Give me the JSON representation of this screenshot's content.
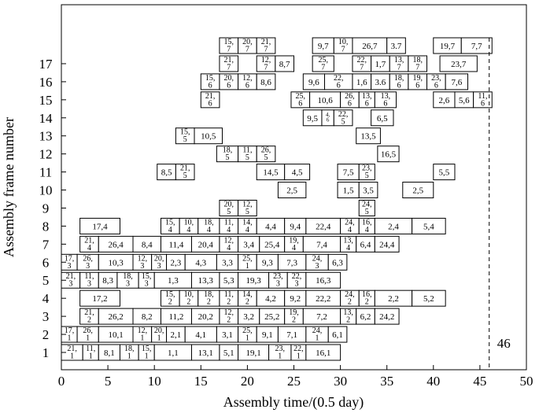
{
  "chart_data": {
    "type": "gantt",
    "title": "",
    "xlabel": "Assembly time/(0.5 day)",
    "ylabel": "Assembly frame number",
    "xlim": [
      0,
      50
    ],
    "ylim": [
      0.5,
      18.5
    ],
    "xticks": [
      "0",
      "5",
      "10",
      "15",
      "20",
      "25",
      "30",
      "35",
      "40",
      "45",
      "50"
    ],
    "yticks": [
      "1",
      "2",
      "3",
      "4",
      "5",
      "6",
      "7",
      "8",
      "9",
      "10",
      "11",
      "12",
      "13",
      "14",
      "15",
      "16",
      "17"
    ],
    "makespan_line": {
      "x": 46,
      "label": "46"
    },
    "tasks": [
      {
        "row": 1,
        "start": 0,
        "end": 2.3,
        "label": "21,\n1"
      },
      {
        "row": 1,
        "start": 2.3,
        "end": 4,
        "label": "11,\n1"
      },
      {
        "row": 1,
        "start": 4,
        "end": 6.3,
        "label": "8,1"
      },
      {
        "row": 1,
        "start": 6.3,
        "end": 8.3,
        "label": "18,\n1"
      },
      {
        "row": 1,
        "start": 8.3,
        "end": 10,
        "label": "15,\n1"
      },
      {
        "row": 1,
        "start": 10,
        "end": 14,
        "label": "1,1"
      },
      {
        "row": 1,
        "start": 14,
        "end": 17,
        "label": "13,1"
      },
      {
        "row": 1,
        "start": 17,
        "end": 19,
        "label": "5,1"
      },
      {
        "row": 1,
        "start": 19,
        "end": 22.3,
        "label": "19,1"
      },
      {
        "row": 1,
        "start": 22.3,
        "end": 24.7,
        "label": "23,\n1"
      },
      {
        "row": 1,
        "start": 24.7,
        "end": 26.3,
        "label": "22,\n1"
      },
      {
        "row": 1,
        "start": 26.3,
        "end": 30,
        "label": "16,1"
      },
      {
        "row": 2,
        "start": 0,
        "end": 1.7,
        "label": "17,\n1"
      },
      {
        "row": 2,
        "start": 1.7,
        "end": 4,
        "label": "26,\n1"
      },
      {
        "row": 2,
        "start": 4,
        "end": 7.7,
        "label": "10,1"
      },
      {
        "row": 2,
        "start": 7.7,
        "end": 9.7,
        "label": "12,\n1"
      },
      {
        "row": 2,
        "start": 9.7,
        "end": 11.3,
        "label": "20,\n1"
      },
      {
        "row": 2,
        "start": 11.3,
        "end": 13.3,
        "label": "2,1"
      },
      {
        "row": 2,
        "start": 13.3,
        "end": 16.7,
        "label": "4,1"
      },
      {
        "row": 2,
        "start": 16.7,
        "end": 19,
        "label": "3,1"
      },
      {
        "row": 2,
        "start": 19,
        "end": 21,
        "label": "25,\n1"
      },
      {
        "row": 2,
        "start": 21,
        "end": 23.3,
        "label": "9,1"
      },
      {
        "row": 2,
        "start": 23.3,
        "end": 26.3,
        "label": "7,1"
      },
      {
        "row": 2,
        "start": 26.3,
        "end": 28.7,
        "label": "24,\n1"
      },
      {
        "row": 2,
        "start": 28.7,
        "end": 30.7,
        "label": "6,1"
      },
      {
        "row": 3,
        "start": 2,
        "end": 4,
        "label": "21,\n2"
      },
      {
        "row": 3,
        "start": 4,
        "end": 7.7,
        "label": "26,2"
      },
      {
        "row": 3,
        "start": 7.7,
        "end": 10.7,
        "label": "8,2"
      },
      {
        "row": 3,
        "start": 10.7,
        "end": 14,
        "label": "11,2"
      },
      {
        "row": 3,
        "start": 14,
        "end": 17,
        "label": "20,2"
      },
      {
        "row": 3,
        "start": 17,
        "end": 19,
        "label": "12,\n2"
      },
      {
        "row": 3,
        "start": 19,
        "end": 21.3,
        "label": "3,2"
      },
      {
        "row": 3,
        "start": 21.3,
        "end": 24,
        "label": "25,2"
      },
      {
        "row": 3,
        "start": 24,
        "end": 26,
        "label": "19,\n2"
      },
      {
        "row": 3,
        "start": 26,
        "end": 30,
        "label": "7,2"
      },
      {
        "row": 3,
        "start": 30,
        "end": 31.7,
        "label": "13,\n2"
      },
      {
        "row": 3,
        "start": 31.7,
        "end": 33.7,
        "label": "6,2"
      },
      {
        "row": 3,
        "start": 33.7,
        "end": 36.3,
        "label": "24,2"
      },
      {
        "row": 4,
        "start": 2,
        "end": 6.3,
        "label": "17,2"
      },
      {
        "row": 4,
        "start": 10.7,
        "end": 12.7,
        "label": "15,\n2"
      },
      {
        "row": 4,
        "start": 12.7,
        "end": 14.7,
        "label": "10,\n2"
      },
      {
        "row": 4,
        "start": 14.7,
        "end": 17,
        "label": "18,\n2"
      },
      {
        "row": 4,
        "start": 17,
        "end": 19,
        "label": "11,\n2"
      },
      {
        "row": 4,
        "start": 19,
        "end": 21,
        "label": "14,\n2"
      },
      {
        "row": 4,
        "start": 21,
        "end": 24,
        "label": "4,2"
      },
      {
        "row": 4,
        "start": 24,
        "end": 26.3,
        "label": "9,2"
      },
      {
        "row": 4,
        "start": 26.3,
        "end": 30,
        "label": "22,2"
      },
      {
        "row": 4,
        "start": 30,
        "end": 32,
        "label": "24,\n2"
      },
      {
        "row": 4,
        "start": 32,
        "end": 33.7,
        "label": "16,\n2"
      },
      {
        "row": 4,
        "start": 33.7,
        "end": 37.7,
        "label": "2,2"
      },
      {
        "row": 4,
        "start": 37.7,
        "end": 41.3,
        "label": "5,2"
      },
      {
        "row": 5,
        "start": 0,
        "end": 2,
        "label": "21,\n3"
      },
      {
        "row": 5,
        "start": 2,
        "end": 4,
        "label": "11,\n3"
      },
      {
        "row": 5,
        "start": 4,
        "end": 6,
        "label": "8,3"
      },
      {
        "row": 5,
        "start": 6,
        "end": 8.3,
        "label": "18,\n3"
      },
      {
        "row": 5,
        "start": 8.3,
        "end": 10,
        "label": "15,\n3"
      },
      {
        "row": 5,
        "start": 10,
        "end": 14,
        "label": "1,3"
      },
      {
        "row": 5,
        "start": 14,
        "end": 17,
        "label": "13,3"
      },
      {
        "row": 5,
        "start": 17,
        "end": 19,
        "label": "5,3"
      },
      {
        "row": 5,
        "start": 19,
        "end": 22.3,
        "label": "19,3"
      },
      {
        "row": 5,
        "start": 22.3,
        "end": 24.3,
        "label": "23,\n3"
      },
      {
        "row": 5,
        "start": 24.3,
        "end": 26.3,
        "label": "22,\n3"
      },
      {
        "row": 5,
        "start": 26.3,
        "end": 30,
        "label": "16,3"
      },
      {
        "row": 6,
        "start": 0,
        "end": 1.7,
        "label": "17,\n3"
      },
      {
        "row": 6,
        "start": 1.7,
        "end": 4,
        "label": "26,\n3"
      },
      {
        "row": 6,
        "start": 4,
        "end": 7.7,
        "label": "10,3"
      },
      {
        "row": 6,
        "start": 7.7,
        "end": 9.7,
        "label": "12,\n3"
      },
      {
        "row": 6,
        "start": 9.7,
        "end": 11.3,
        "label": "20,\n3"
      },
      {
        "row": 6,
        "start": 11.3,
        "end": 13.3,
        "label": "2,3"
      },
      {
        "row": 6,
        "start": 13.3,
        "end": 16.7,
        "label": "4,3"
      },
      {
        "row": 6,
        "start": 16.7,
        "end": 19,
        "label": "3,3"
      },
      {
        "row": 6,
        "start": 19,
        "end": 21,
        "label": "25,\n1"
      },
      {
        "row": 6,
        "start": 21,
        "end": 23.3,
        "label": "9,3"
      },
      {
        "row": 6,
        "start": 23.3,
        "end": 26.3,
        "label": "7,3"
      },
      {
        "row": 6,
        "start": 26.3,
        "end": 28.7,
        "label": "24,\n3"
      },
      {
        "row": 6,
        "start": 28.7,
        "end": 30.7,
        "label": "6,3"
      },
      {
        "row": 7,
        "start": 2,
        "end": 4,
        "label": "21,\n4"
      },
      {
        "row": 7,
        "start": 4,
        "end": 7.7,
        "label": "26,4"
      },
      {
        "row": 7,
        "start": 7.7,
        "end": 10.7,
        "label": "8,4"
      },
      {
        "row": 7,
        "start": 10.7,
        "end": 14,
        "label": "11,4"
      },
      {
        "row": 7,
        "start": 14,
        "end": 17,
        "label": "20,4"
      },
      {
        "row": 7,
        "start": 17,
        "end": 19,
        "label": "12,\n4"
      },
      {
        "row": 7,
        "start": 19,
        "end": 21.3,
        "label": "3,4"
      },
      {
        "row": 7,
        "start": 21.3,
        "end": 24,
        "label": "25,4"
      },
      {
        "row": 7,
        "start": 24,
        "end": 26,
        "label": "19,\n4"
      },
      {
        "row": 7,
        "start": 26,
        "end": 30,
        "label": "7,4"
      },
      {
        "row": 7,
        "start": 30,
        "end": 31.7,
        "label": "13,\n4"
      },
      {
        "row": 7,
        "start": 31.7,
        "end": 33.7,
        "label": "6,4"
      },
      {
        "row": 7,
        "start": 33.7,
        "end": 36.3,
        "label": "24,4"
      },
      {
        "row": 8,
        "start": 2,
        "end": 6.3,
        "label": "17,4"
      },
      {
        "row": 8,
        "start": 10.7,
        "end": 12.7,
        "label": "15,\n4"
      },
      {
        "row": 8,
        "start": 12.7,
        "end": 14.7,
        "label": "10,\n4"
      },
      {
        "row": 8,
        "start": 14.7,
        "end": 17,
        "label": "18,\n4"
      },
      {
        "row": 8,
        "start": 17,
        "end": 19,
        "label": "11,\n4"
      },
      {
        "row": 8,
        "start": 19,
        "end": 21,
        "label": "14,\n4"
      },
      {
        "row": 8,
        "start": 21,
        "end": 24,
        "label": "4,4"
      },
      {
        "row": 8,
        "start": 24,
        "end": 26.3,
        "label": "9,4"
      },
      {
        "row": 8,
        "start": 26.3,
        "end": 30,
        "label": "22,4"
      },
      {
        "row": 8,
        "start": 30,
        "end": 32,
        "label": "24,\n4"
      },
      {
        "row": 8,
        "start": 32,
        "end": 33.7,
        "label": "16,\n4"
      },
      {
        "row": 8,
        "start": 33.7,
        "end": 37.7,
        "label": "2,4"
      },
      {
        "row": 8,
        "start": 37.7,
        "end": 41.3,
        "label": "5,4"
      },
      {
        "row": 9,
        "start": 17,
        "end": 19,
        "label": "20,\n5"
      },
      {
        "row": 9,
        "start": 19,
        "end": 21,
        "label": "12,\n5"
      },
      {
        "row": 9,
        "start": 32,
        "end": 33.7,
        "label": "24,\n5"
      },
      {
        "row": 10,
        "start": 23.3,
        "end": 26.3,
        "label": "2,5"
      },
      {
        "row": 10,
        "start": 29.7,
        "end": 32,
        "label": "1,5"
      },
      {
        "row": 10,
        "start": 32,
        "end": 34,
        "label": "3,5"
      },
      {
        "row": 10,
        "start": 36.7,
        "end": 40,
        "label": "2,5"
      },
      {
        "row": 11,
        "start": 10.3,
        "end": 12.3,
        "label": "8,5"
      },
      {
        "row": 11,
        "start": 12.3,
        "end": 14.3,
        "label": "21,\n5"
      },
      {
        "row": 11,
        "start": 21,
        "end": 24,
        "label": "14,5"
      },
      {
        "row": 11,
        "start": 24,
        "end": 26.7,
        "label": "4,5"
      },
      {
        "row": 11,
        "start": 29.7,
        "end": 32,
        "label": "7,5"
      },
      {
        "row": 11,
        "start": 32,
        "end": 33.7,
        "label": "23,\n5"
      },
      {
        "row": 11,
        "start": 40,
        "end": 42.3,
        "label": "5,5"
      },
      {
        "row": 12,
        "start": 16.7,
        "end": 19,
        "label": "18,\n5"
      },
      {
        "row": 12,
        "start": 19,
        "end": 21,
        "label": "11,\n5"
      },
      {
        "row": 12,
        "start": 21,
        "end": 23,
        "label": "26,\n5"
      },
      {
        "row": 12,
        "start": 34,
        "end": 36.3,
        "label": "16,5"
      },
      {
        "row": 13,
        "start": 12.3,
        "end": 14.3,
        "label": "15,\n5"
      },
      {
        "row": 13,
        "start": 14.3,
        "end": 17.3,
        "label": "10,5"
      },
      {
        "row": 13,
        "start": 31.7,
        "end": 34.3,
        "label": "13,5"
      },
      {
        "row": 14,
        "start": 26,
        "end": 28,
        "label": "9,5"
      },
      {
        "row": 14,
        "start": 28,
        "end": 29.3,
        "label": "4,\n6"
      },
      {
        "row": 14,
        "start": 29.3,
        "end": 31.3,
        "label": "22,\n5"
      },
      {
        "row": 14,
        "start": 33.3,
        "end": 35.7,
        "label": "6,5"
      },
      {
        "row": 15,
        "start": 15,
        "end": 17,
        "label": "21,\n6"
      },
      {
        "row": 15,
        "start": 24.7,
        "end": 26.7,
        "label": "25,\n6"
      },
      {
        "row": 15,
        "start": 26.7,
        "end": 30,
        "label": "10,6"
      },
      {
        "row": 15,
        "start": 30,
        "end": 32,
        "label": "26,\n6"
      },
      {
        "row": 15,
        "start": 32,
        "end": 33.7,
        "label": "13,\n6"
      },
      {
        "row": 15,
        "start": 33.7,
        "end": 36,
        "label": "13,\n6"
      },
      {
        "row": 15,
        "start": 40,
        "end": 42.3,
        "label": "2,6"
      },
      {
        "row": 15,
        "start": 42.3,
        "end": 44.3,
        "label": "5,6"
      },
      {
        "row": 15,
        "start": 44.3,
        "end": 46.3,
        "label": "11,\n6"
      },
      {
        "row": 16,
        "start": 15,
        "end": 17,
        "label": "15,\n6"
      },
      {
        "row": 16,
        "start": 17,
        "end": 19,
        "label": "20,\n6"
      },
      {
        "row": 16,
        "start": 19,
        "end": 21,
        "label": "12,\n6"
      },
      {
        "row": 16,
        "start": 21,
        "end": 23,
        "label": "8,6"
      },
      {
        "row": 16,
        "start": 26,
        "end": 28.3,
        "label": "9,6"
      },
      {
        "row": 16,
        "start": 28.3,
        "end": 31.3,
        "label": "22,\n6"
      },
      {
        "row": 16,
        "start": 31.3,
        "end": 33.3,
        "label": "1,6"
      },
      {
        "row": 16,
        "start": 33.3,
        "end": 35.3,
        "label": "3.6"
      },
      {
        "row": 16,
        "start": 35.3,
        "end": 37.3,
        "label": "18,\n6"
      },
      {
        "row": 16,
        "start": 37.3,
        "end": 39.3,
        "label": "19,\n6"
      },
      {
        "row": 16,
        "start": 39.3,
        "end": 41.3,
        "label": "23,\n6"
      },
      {
        "row": 16,
        "start": 41.3,
        "end": 43.7,
        "label": "7,6"
      },
      {
        "row": 17,
        "start": 17,
        "end": 19,
        "label": "21,\n7"
      },
      {
        "row": 17,
        "start": 21,
        "end": 23,
        "label": "12,\n7"
      },
      {
        "row": 17,
        "start": 23,
        "end": 25,
        "label": "8,7"
      },
      {
        "row": 17,
        "start": 27,
        "end": 29.3,
        "label": "25,\n7"
      },
      {
        "row": 17,
        "start": 31.3,
        "end": 33.3,
        "label": "22,\n7"
      },
      {
        "row": 17,
        "start": 33.3,
        "end": 35.3,
        "label": "1,7"
      },
      {
        "row": 17,
        "start": 35.3,
        "end": 37.3,
        "label": "13,\n7"
      },
      {
        "row": 17,
        "start": 37.3,
        "end": 39.3,
        "label": "18,\n7"
      },
      {
        "row": 17,
        "start": 40.7,
        "end": 44.7,
        "label": "23,7"
      },
      {
        "row": 18,
        "start": 17,
        "end": 19,
        "label": "15,\n7"
      },
      {
        "row": 18,
        "start": 19,
        "end": 21,
        "label": "20,\n7"
      },
      {
        "row": 18,
        "start": 21,
        "end": 23,
        "label": "21,\n7"
      },
      {
        "row": 18,
        "start": 27,
        "end": 29.3,
        "label": "9,7"
      },
      {
        "row": 18,
        "start": 29.3,
        "end": 31.3,
        "label": "10,\n7"
      },
      {
        "row": 18,
        "start": 31.3,
        "end": 35,
        "label": "26,7"
      },
      {
        "row": 18,
        "start": 35,
        "end": 37,
        "label": "3.7"
      },
      {
        "row": 18,
        "start": 40,
        "end": 43,
        "label": "19,7"
      },
      {
        "row": 18,
        "start": 43,
        "end": 46.3,
        "label": "7,7"
      }
    ]
  }
}
